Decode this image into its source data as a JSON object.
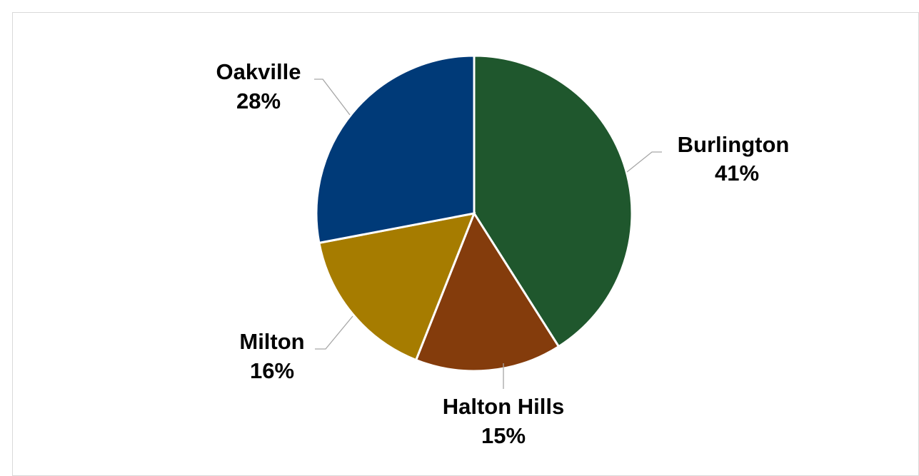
{
  "chart_data": {
    "type": "pie",
    "slices": [
      {
        "label": "Burlington",
        "value": 41,
        "display": "41%",
        "color": "#1f572d"
      },
      {
        "label": "Halton Hills",
        "value": 15,
        "display": "15%",
        "color": "#843c0c"
      },
      {
        "label": "Milton",
        "value": 16,
        "display": "16%",
        "color": "#a67c00"
      },
      {
        "label": "Oakville",
        "value": 28,
        "display": "28%",
        "color": "#003a78"
      }
    ],
    "start_angle": "top",
    "direction": "clockwise",
    "legend": "none",
    "data_labels": "outside-with-leader-lines"
  }
}
